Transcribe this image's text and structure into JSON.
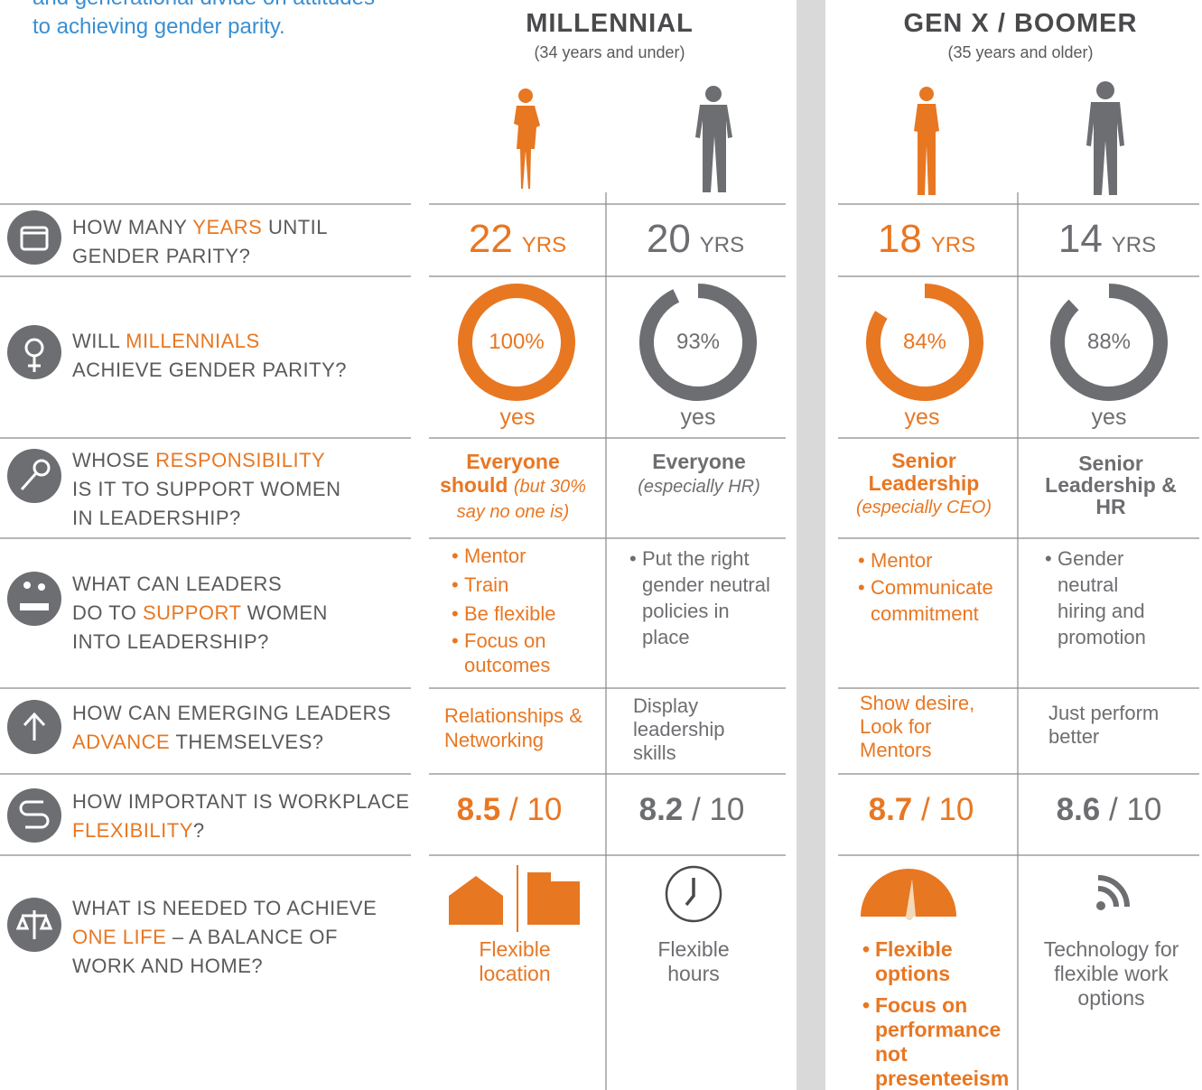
{
  "intro": {
    "lines": [
      "and generational divide on attitudes",
      "to achieving gender parity."
    ]
  },
  "groups": [
    {
      "title": "MILLENNIAL",
      "subtitle": "(34 years and under)"
    },
    {
      "title": "GEN X / BOOMER",
      "subtitle": "(35 years and older)"
    }
  ],
  "rows": [
    {
      "label": [
        [
          {
            "text": "HOW MANY "
          },
          {
            "text": "YEARS",
            "accent": true
          },
          {
            "text": " UNTIL"
          }
        ],
        [
          {
            "text": "GENDER PARITY?"
          }
        ]
      ],
      "cells": [
        {
          "number": "22",
          "unit": "YRS"
        },
        {
          "number": "20",
          "unit": "YRS"
        },
        {
          "number": "18",
          "unit": "YRS"
        },
        {
          "number": "14",
          "unit": "YRS"
        }
      ]
    },
    {
      "label": [
        [
          {
            "text": "WILL "
          },
          {
            "text": "MILLENNIALS",
            "accent": true
          }
        ],
        [
          {
            "text": "ACHIEVE GENDER PARITY?"
          }
        ]
      ],
      "cells": [
        {
          "value": 100,
          "label": "100%",
          "answer": "yes"
        },
        {
          "value": 93,
          "label": "93%",
          "answer": "yes"
        },
        {
          "value": 84,
          "label": "84%",
          "answer": "yes"
        },
        {
          "value": 88,
          "label": "88%",
          "answer": "yes"
        }
      ]
    },
    {
      "label": [
        [
          {
            "text": "WHOSE "
          },
          {
            "text": "RESPONSIBILITY",
            "accent": true
          }
        ],
        [
          {
            "text": "IS IT TO SUPPORT WOMEN"
          }
        ],
        [
          {
            "text": "IN LEADERSHIP?"
          }
        ]
      ],
      "cells": [
        {
          "main": "Everyone should",
          "note": "(but 30% say no one is)"
        },
        {
          "main": "Everyone",
          "note": "(especially HR)"
        },
        {
          "main": "Senior Leadership",
          "note": "(especially CEO)"
        },
        {
          "main": "Senior Leadership & HR"
        }
      ]
    },
    {
      "label": [
        [
          {
            "text": "WHAT CAN LEADERS"
          }
        ],
        [
          {
            "text": "DO TO "
          },
          {
            "text": "SUPPORT",
            "accent": true
          },
          {
            "text": " WOMEN"
          }
        ],
        [
          {
            "text": "INTO LEADERSHIP?"
          }
        ]
      ],
      "cells": [
        {
          "items": [
            "Mentor",
            "Train",
            "Be flexible",
            "Focus on outcomes"
          ]
        },
        {
          "items": [
            "Put the right gender neutral policies in place"
          ]
        },
        {
          "items": [
            "Mentor",
            "Communicate commitment"
          ]
        },
        {
          "items": [
            "Gender neutral hiring and promotion"
          ]
        }
      ]
    },
    {
      "label": [
        [
          {
            "text": "HOW CAN EMERGING LEADERS"
          }
        ],
        [
          {
            "text": "ADVANCE",
            "accent": true
          },
          {
            "text": " THEMSELVES?"
          }
        ]
      ],
      "cells": [
        {
          "text": "Relationships & Networking"
        },
        {
          "text": "Display leadership skills"
        },
        {
          "text": "Show desire, Look for Mentors"
        },
        {
          "text": "Just perform better"
        }
      ]
    },
    {
      "label": [
        [
          {
            "text": "HOW IMPORTANT IS WORKPLACE"
          }
        ],
        [
          {
            "text": "FLEXIBILITY",
            "accent": true
          },
          {
            "text": "?"
          }
        ]
      ],
      "cells": [
        {
          "score": "8.5",
          "scale": "/ 10"
        },
        {
          "score": "8.2",
          "scale": "/ 10"
        },
        {
          "score": "8.7",
          "scale": "/ 10"
        },
        {
          "score": "8.6",
          "scale": "/ 10"
        }
      ]
    },
    {
      "label": [
        [
          {
            "text": "WHAT IS NEEDED TO ACHIEVE"
          }
        ],
        [
          {
            "text": "ONE LIFE",
            "accent": true
          },
          {
            "text": " – A BALANCE OF"
          }
        ],
        [
          {
            "text": "WORK AND HOME?"
          }
        ]
      ],
      "cells": [
        {
          "text": "Flexible location"
        },
        {
          "text": "Flexible hours"
        },
        {
          "items": [
            "Flexible options",
            "Focus on performance not presenteeism"
          ]
        },
        {
          "text": "Technology for flexible work options"
        }
      ]
    }
  ]
}
